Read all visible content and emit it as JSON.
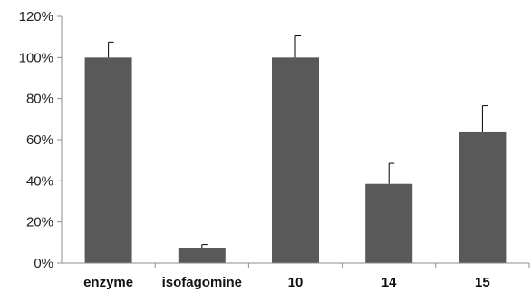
{
  "chart_data": {
    "type": "bar",
    "title": "",
    "xlabel": "",
    "ylabel": "",
    "categories": [
      "enzyme",
      "isofagomine",
      "10",
      "14",
      "15"
    ],
    "values": [
      100,
      7.5,
      100,
      38.5,
      64
    ],
    "error_plus": [
      7.5,
      1.5,
      10.5,
      10,
      12.5
    ],
    "ylim": [
      0,
      120
    ],
    "y_ticks": [
      0,
      20,
      40,
      60,
      80,
      100,
      120
    ],
    "y_tick_labels": [
      "0%",
      "20%",
      "40%",
      "60%",
      "80%",
      "100%",
      "120%"
    ],
    "grid": false,
    "legend": "none",
    "bar_color": "#595959",
    "axis_color": "#8c8c8c"
  }
}
